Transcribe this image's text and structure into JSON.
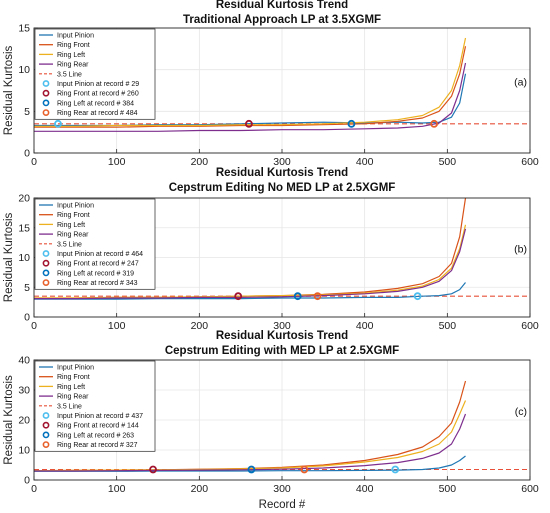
{
  "colors": {
    "input_pinion": "#1f77b4",
    "ring_front": "#d95319",
    "ring_left": "#edb120",
    "ring_rear": "#7e2f8e",
    "threshold": "#e8503a",
    "marker_pinion": "#4dbeee",
    "marker_front": "#a2142f",
    "marker_left": "#0072bd",
    "marker_rear": "#e8602a"
  },
  "chart_data": [
    {
      "type": "line",
      "title": "Residual Kurtosis Trend",
      "subtitle": "Traditional Approach LP at 3.5XGMF",
      "ylabel": "Residual Kurtosis",
      "xlabel": "",
      "panel_label": "(a)",
      "xlim": [
        0,
        600
      ],
      "ylim": [
        0,
        15
      ],
      "xticks": [
        "0",
        "100",
        "200",
        "300",
        "400",
        "500",
        "600"
      ],
      "yticks": [
        "0",
        "5",
        "10",
        "15"
      ],
      "threshold": {
        "name": "3.5 Line",
        "value": 3.5
      },
      "series": [
        {
          "name": "Input Pinion",
          "key": "input_pinion",
          "x": [
            0,
            50,
            100,
            150,
            200,
            250,
            300,
            350,
            400,
            440,
            470,
            490,
            505,
            515,
            522
          ],
          "y": [
            3.3,
            3.3,
            3.3,
            3.4,
            3.4,
            3.5,
            3.6,
            3.7,
            3.6,
            3.7,
            3.6,
            3.7,
            4.3,
            6.0,
            9.5
          ]
        },
        {
          "name": "Ring Front",
          "key": "ring_front",
          "x": [
            0,
            50,
            100,
            150,
            200,
            250,
            300,
            350,
            400,
            440,
            470,
            490,
            505,
            515,
            522
          ],
          "y": [
            3.1,
            3.1,
            3.1,
            3.2,
            3.2,
            3.3,
            3.3,
            3.4,
            3.5,
            3.8,
            4.2,
            5.0,
            6.8,
            9.5,
            12.8
          ]
        },
        {
          "name": "Ring Left",
          "key": "ring_left",
          "x": [
            0,
            50,
            100,
            150,
            200,
            250,
            300,
            350,
            400,
            440,
            470,
            490,
            505,
            515,
            522
          ],
          "y": [
            3.2,
            3.2,
            3.3,
            3.3,
            3.3,
            3.4,
            3.4,
            3.5,
            3.7,
            4.0,
            4.5,
            5.5,
            7.5,
            10.5,
            13.8
          ]
        },
        {
          "name": "Ring Rear",
          "key": "ring_rear",
          "x": [
            0,
            50,
            100,
            150,
            200,
            250,
            300,
            350,
            400,
            440,
            470,
            490,
            505,
            515,
            522
          ],
          "y": [
            2.6,
            2.6,
            2.6,
            2.6,
            2.7,
            2.7,
            2.8,
            2.8,
            2.9,
            3.0,
            3.2,
            3.6,
            4.8,
            7.5,
            10.8
          ]
        }
      ],
      "markers": [
        {
          "name": "Input Pinion at record # 29",
          "key": "marker_pinion",
          "x": 29,
          "y": 3.5
        },
        {
          "name": "Ring Front at record # 260",
          "key": "marker_front",
          "x": 260,
          "y": 3.5
        },
        {
          "name": "Ring Left at record # 384",
          "key": "marker_left",
          "x": 384,
          "y": 3.5
        },
        {
          "name": "Ring Rear at record # 484",
          "key": "marker_rear",
          "x": 484,
          "y": 3.5
        }
      ]
    },
    {
      "type": "line",
      "title": "Residual Kurtosis Trend",
      "subtitle": "Cepstrum Editing No MED LP at 2.5XGMF",
      "ylabel": "Residual Kurtosis",
      "xlabel": "",
      "panel_label": "(b)",
      "xlim": [
        0,
        600
      ],
      "ylim": [
        0,
        20
      ],
      "xticks": [
        "0",
        "100",
        "200",
        "300",
        "400",
        "500",
        "600"
      ],
      "yticks": [
        "0",
        "5",
        "10",
        "15",
        "20"
      ],
      "threshold": {
        "name": "3.5 Line",
        "value": 3.5
      },
      "series": [
        {
          "name": "Input Pinion",
          "key": "input_pinion",
          "x": [
            0,
            50,
            100,
            150,
            200,
            250,
            300,
            350,
            400,
            440,
            470,
            490,
            505,
            515,
            522
          ],
          "y": [
            3.0,
            3.0,
            3.0,
            3.1,
            3.1,
            3.1,
            3.2,
            3.2,
            3.3,
            3.3,
            3.5,
            3.6,
            3.9,
            4.6,
            5.8
          ]
        },
        {
          "name": "Ring Front",
          "key": "ring_front",
          "x": [
            0,
            50,
            100,
            150,
            200,
            250,
            300,
            350,
            400,
            440,
            470,
            490,
            505,
            515,
            522
          ],
          "y": [
            3.2,
            3.2,
            3.3,
            3.3,
            3.4,
            3.5,
            3.6,
            3.8,
            4.2,
            4.8,
            5.6,
            6.8,
            9.0,
            13.5,
            20.0
          ]
        },
        {
          "name": "Ring Left",
          "key": "ring_left",
          "x": [
            0,
            50,
            100,
            150,
            200,
            250,
            300,
            350,
            400,
            440,
            470,
            490,
            505,
            515,
            522
          ],
          "y": [
            3.2,
            3.2,
            3.3,
            3.3,
            3.4,
            3.5,
            3.6,
            3.7,
            4.0,
            4.5,
            5.2,
            6.3,
            8.2,
            11.5,
            15.5
          ]
        },
        {
          "name": "Ring Rear",
          "key": "ring_rear",
          "x": [
            0,
            50,
            100,
            150,
            200,
            250,
            300,
            350,
            400,
            440,
            470,
            490,
            505,
            515,
            522
          ],
          "y": [
            3.1,
            3.1,
            3.2,
            3.2,
            3.3,
            3.3,
            3.4,
            3.6,
            3.9,
            4.3,
            5.0,
            6.0,
            7.8,
            11.0,
            14.8
          ]
        }
      ],
      "markers": [
        {
          "name": "Input Pinion at record # 464",
          "key": "marker_pinion",
          "x": 464,
          "y": 3.5
        },
        {
          "name": "Ring Front at record # 247",
          "key": "marker_front",
          "x": 247,
          "y": 3.5
        },
        {
          "name": "Ring Left at record # 319",
          "key": "marker_left",
          "x": 319,
          "y": 3.5
        },
        {
          "name": "Ring Rear at record # 343",
          "key": "marker_rear",
          "x": 343,
          "y": 3.5
        }
      ]
    },
    {
      "type": "line",
      "title": "Residual Kurtosis Trend",
      "subtitle": "Cepstrum Editing with MED LP at 2.5XGMF",
      "ylabel": "Residual Kurtosis",
      "xlabel": "Record #",
      "panel_label": "(c)",
      "xlim": [
        0,
        600
      ],
      "ylim": [
        0,
        40
      ],
      "xticks": [
        "0",
        "100",
        "200",
        "300",
        "400",
        "500",
        "600"
      ],
      "yticks": [
        "0",
        "10",
        "20",
        "30",
        "40"
      ],
      "threshold": {
        "name": "3.5 Line",
        "value": 3.5
      },
      "series": [
        {
          "name": "Input Pinion",
          "key": "input_pinion",
          "x": [
            0,
            50,
            100,
            150,
            200,
            250,
            300,
            350,
            400,
            440,
            470,
            490,
            505,
            515,
            522
          ],
          "y": [
            2.9,
            2.9,
            2.9,
            3.0,
            3.0,
            3.0,
            3.1,
            3.1,
            3.2,
            3.3,
            3.5,
            4.0,
            5.0,
            6.5,
            8.0
          ]
        },
        {
          "name": "Ring Front",
          "key": "ring_front",
          "x": [
            0,
            50,
            100,
            150,
            200,
            250,
            300,
            350,
            400,
            440,
            470,
            490,
            505,
            515,
            522
          ],
          "y": [
            3.1,
            3.2,
            3.3,
            3.4,
            3.6,
            3.8,
            4.2,
            5.0,
            6.5,
            8.5,
            11.0,
            14.5,
            19.0,
            26.0,
            33.0
          ]
        },
        {
          "name": "Ring Left",
          "key": "ring_left",
          "x": [
            0,
            50,
            100,
            150,
            200,
            250,
            300,
            350,
            400,
            440,
            470,
            490,
            505,
            515,
            522
          ],
          "y": [
            3.1,
            3.2,
            3.3,
            3.4,
            3.5,
            3.7,
            4.0,
            4.7,
            6.0,
            7.5,
            9.5,
            12.0,
            16.0,
            22.0,
            26.5
          ]
        },
        {
          "name": "Ring Rear",
          "key": "ring_rear",
          "x": [
            0,
            50,
            100,
            150,
            200,
            250,
            300,
            350,
            400,
            440,
            470,
            490,
            505,
            515,
            522
          ],
          "y": [
            3.0,
            3.0,
            3.1,
            3.2,
            3.3,
            3.4,
            3.6,
            4.0,
            4.8,
            5.8,
            7.2,
            9.0,
            12.0,
            17.0,
            22.0
          ]
        }
      ],
      "markers": [
        {
          "name": "Input Pinion at record # 437",
          "key": "marker_pinion",
          "x": 437,
          "y": 3.5
        },
        {
          "name": "Ring Front at record # 144",
          "key": "marker_front",
          "x": 144,
          "y": 3.5
        },
        {
          "name": "Ring Left at record # 263",
          "key": "marker_left",
          "x": 263,
          "y": 3.5
        },
        {
          "name": "Ring Rear at record # 327",
          "key": "marker_rear",
          "x": 327,
          "y": 3.5
        }
      ]
    }
  ]
}
